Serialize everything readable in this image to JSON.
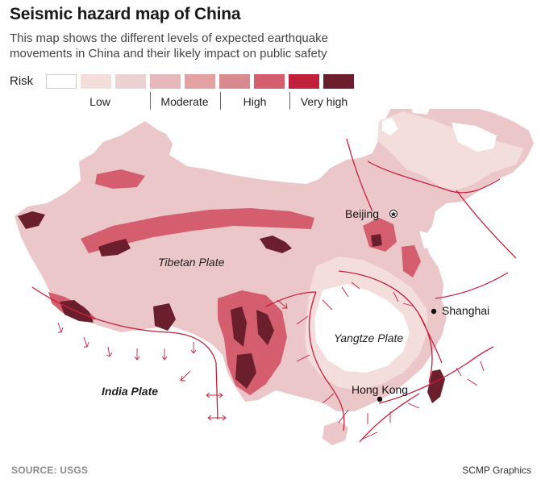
{
  "header": {
    "title": "Seismic hazard map of China",
    "subtitle": "This map shows the different levels of expected earthquake movements in China and their likely impact on public safety"
  },
  "legend": {
    "label": "Risk",
    "swatches": [
      "#ffffff",
      "#f4dedc",
      "#ecd2d2",
      "#e6b8bb",
      "#e3a1a2",
      "#d98a8f",
      "#d45d6e",
      "#c0203a",
      "#6b1f2c"
    ],
    "tiers": [
      "Low",
      "Moderate",
      "High",
      "Very high"
    ]
  },
  "map": {
    "plates": {
      "tibetan": "Tibetan Plate",
      "yangtze": "Yangtze Plate",
      "india": "India Plate"
    },
    "cities": {
      "beijing": "Beijing",
      "shanghai": "Shanghai",
      "hong_kong": "Hong Kong"
    },
    "colors": {
      "boundary": "#c8203c",
      "base": "#ebc7c9",
      "low": "#f4dedc",
      "high": "#d45d6e",
      "very_high": "#6b1f2c"
    }
  },
  "footer": {
    "source": "SOURCE: USGS",
    "credit": "SCMP Graphics"
  }
}
